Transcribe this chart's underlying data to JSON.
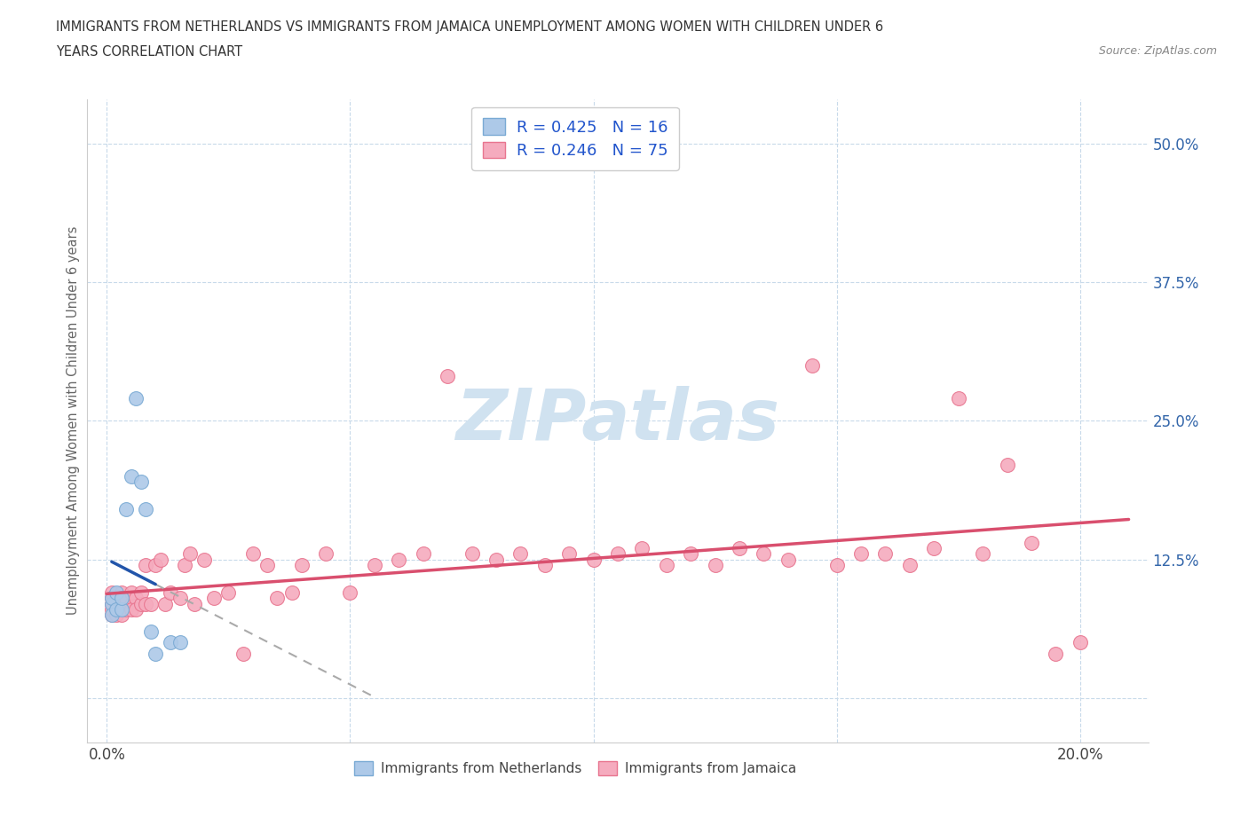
{
  "title_line1": "IMMIGRANTS FROM NETHERLANDS VS IMMIGRANTS FROM JAMAICA UNEMPLOYMENT AMONG WOMEN WITH CHILDREN UNDER 6",
  "title_line2": "YEARS CORRELATION CHART",
  "source": "Source: ZipAtlas.com",
  "ylabel": "Unemployment Among Women with Children Under 6 years",
  "netherlands_color": "#adc9e8",
  "netherlands_edge": "#7aaad4",
  "jamaica_color": "#f5abbe",
  "jamaica_edge": "#e8758f",
  "trend_netherlands_color": "#2255aa",
  "trend_jamaica_color": "#d94f6e",
  "watermark_color": "#d0e2f0",
  "legend_R_netherlands": "R = 0.425",
  "legend_N_netherlands": "N = 16",
  "legend_R_jamaica": "R = 0.246",
  "legend_N_jamaica": "N = 75",
  "legend_text_color": "#2255cc",
  "nl_x": [
    0.001,
    0.001,
    0.001,
    0.002,
    0.002,
    0.003,
    0.003,
    0.004,
    0.005,
    0.006,
    0.007,
    0.008,
    0.009,
    0.01,
    0.013,
    0.015
  ],
  "nl_y": [
    0.085,
    0.075,
    0.09,
    0.08,
    0.095,
    0.08,
    0.09,
    0.17,
    0.2,
    0.27,
    0.195,
    0.17,
    0.06,
    0.04,
    0.05,
    0.05
  ],
  "jm_x": [
    0.001,
    0.001,
    0.001,
    0.001,
    0.001,
    0.002,
    0.002,
    0.002,
    0.002,
    0.003,
    0.003,
    0.003,
    0.003,
    0.004,
    0.004,
    0.004,
    0.005,
    0.005,
    0.005,
    0.006,
    0.006,
    0.007,
    0.007,
    0.008,
    0.008,
    0.009,
    0.01,
    0.011,
    0.012,
    0.013,
    0.015,
    0.016,
    0.017,
    0.018,
    0.02,
    0.022,
    0.025,
    0.028,
    0.03,
    0.033,
    0.035,
    0.038,
    0.04,
    0.045,
    0.05,
    0.055,
    0.06,
    0.065,
    0.07,
    0.075,
    0.08,
    0.085,
    0.09,
    0.095,
    0.1,
    0.105,
    0.11,
    0.115,
    0.12,
    0.125,
    0.13,
    0.135,
    0.14,
    0.145,
    0.15,
    0.155,
    0.16,
    0.165,
    0.17,
    0.175,
    0.18,
    0.185,
    0.19,
    0.195,
    0.2
  ],
  "jm_y": [
    0.085,
    0.09,
    0.095,
    0.075,
    0.08,
    0.085,
    0.08,
    0.09,
    0.075,
    0.085,
    0.09,
    0.095,
    0.075,
    0.085,
    0.09,
    0.08,
    0.085,
    0.08,
    0.095,
    0.09,
    0.08,
    0.085,
    0.095,
    0.085,
    0.12,
    0.085,
    0.12,
    0.125,
    0.085,
    0.095,
    0.09,
    0.12,
    0.13,
    0.085,
    0.125,
    0.09,
    0.095,
    0.04,
    0.13,
    0.12,
    0.09,
    0.095,
    0.12,
    0.13,
    0.095,
    0.12,
    0.125,
    0.13,
    0.29,
    0.13,
    0.125,
    0.13,
    0.12,
    0.13,
    0.125,
    0.13,
    0.135,
    0.12,
    0.13,
    0.12,
    0.135,
    0.13,
    0.125,
    0.3,
    0.12,
    0.13,
    0.13,
    0.12,
    0.135,
    0.27,
    0.13,
    0.21,
    0.14,
    0.04,
    0.05
  ],
  "xlim": [
    -0.004,
    0.214
  ],
  "ylim": [
    -0.04,
    0.54
  ],
  "xtick_pos": [
    0.0,
    0.05,
    0.1,
    0.15,
    0.2
  ],
  "xtick_labels": [
    "0.0%",
    "",
    "",
    "",
    "20.0%"
  ],
  "ytick_pos": [
    0.0,
    0.125,
    0.25,
    0.375,
    0.5
  ],
  "ytick_labels": [
    "",
    "12.5%",
    "25.0%",
    "37.5%",
    "50.0%"
  ],
  "nl_trend_x_start": 0.001,
  "nl_trend_x_solid_end": 0.01,
  "nl_trend_x_dash_end": 0.055,
  "jm_trend_x_start": 0.0,
  "jm_trend_x_end": 0.21
}
